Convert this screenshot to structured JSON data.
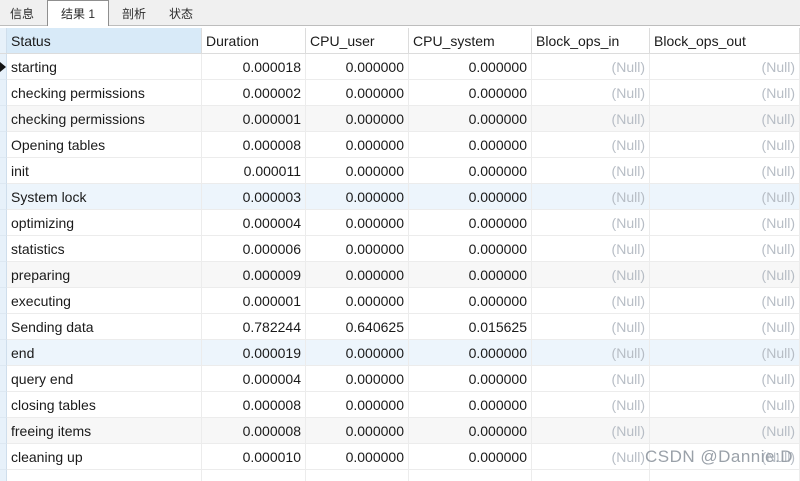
{
  "tab_bar": {
    "tabs": [
      {
        "name": "info",
        "label": "信息",
        "active": false
      },
      {
        "name": "result-1",
        "label": "结果 1",
        "active": true
      },
      {
        "name": "profiling",
        "label": "剖析",
        "active": false
      },
      {
        "name": "status",
        "label": "状态",
        "active": false
      }
    ]
  },
  "grid": {
    "columns": [
      {
        "key": "status",
        "label": "Status",
        "selected": true
      },
      {
        "key": "duration",
        "label": "Duration"
      },
      {
        "key": "cpu_user",
        "label": "CPU_user"
      },
      {
        "key": "cpu_system",
        "label": "CPU_system"
      },
      {
        "key": "block_ops_in",
        "label": "Block_ops_in"
      },
      {
        "key": "block_ops_out",
        "label": "Block_ops_out"
      }
    ],
    "null_text": "(Null)",
    "rows": [
      {
        "current": true,
        "tint": "none",
        "cells": {
          "status": "starting",
          "duration": "0.000018",
          "cpu_user": "0.000000",
          "cpu_system": "0.000000",
          "block_ops_in": null,
          "block_ops_out": null
        }
      },
      {
        "current": false,
        "tint": "none",
        "cells": {
          "status": "checking permissions",
          "duration": "0.000002",
          "cpu_user": "0.000000",
          "cpu_system": "0.000000",
          "block_ops_in": null,
          "block_ops_out": null
        }
      },
      {
        "current": false,
        "tint": "gray",
        "cells": {
          "status": "checking permissions",
          "duration": "0.000001",
          "cpu_user": "0.000000",
          "cpu_system": "0.000000",
          "block_ops_in": null,
          "block_ops_out": null
        }
      },
      {
        "current": false,
        "tint": "none",
        "cells": {
          "status": "Opening tables",
          "duration": "0.000008",
          "cpu_user": "0.000000",
          "cpu_system": "0.000000",
          "block_ops_in": null,
          "block_ops_out": null
        }
      },
      {
        "current": false,
        "tint": "none",
        "cells": {
          "status": "init",
          "duration": "0.000011",
          "cpu_user": "0.000000",
          "cpu_system": "0.000000",
          "block_ops_in": null,
          "block_ops_out": null
        }
      },
      {
        "current": false,
        "tint": "blue",
        "cells": {
          "status": "System lock",
          "duration": "0.000003",
          "cpu_user": "0.000000",
          "cpu_system": "0.000000",
          "block_ops_in": null,
          "block_ops_out": null
        }
      },
      {
        "current": false,
        "tint": "none",
        "cells": {
          "status": "optimizing",
          "duration": "0.000004",
          "cpu_user": "0.000000",
          "cpu_system": "0.000000",
          "block_ops_in": null,
          "block_ops_out": null
        }
      },
      {
        "current": false,
        "tint": "none",
        "cells": {
          "status": "statistics",
          "duration": "0.000006",
          "cpu_user": "0.000000",
          "cpu_system": "0.000000",
          "block_ops_in": null,
          "block_ops_out": null
        }
      },
      {
        "current": false,
        "tint": "gray",
        "cells": {
          "status": "preparing",
          "duration": "0.000009",
          "cpu_user": "0.000000",
          "cpu_system": "0.000000",
          "block_ops_in": null,
          "block_ops_out": null
        }
      },
      {
        "current": false,
        "tint": "none",
        "cells": {
          "status": "executing",
          "duration": "0.000001",
          "cpu_user": "0.000000",
          "cpu_system": "0.000000",
          "block_ops_in": null,
          "block_ops_out": null
        }
      },
      {
        "current": false,
        "tint": "none",
        "cells": {
          "status": "Sending data",
          "duration": "0.782244",
          "cpu_user": "0.640625",
          "cpu_system": "0.015625",
          "block_ops_in": null,
          "block_ops_out": null
        }
      },
      {
        "current": false,
        "tint": "blue",
        "cells": {
          "status": "end",
          "duration": "0.000019",
          "cpu_user": "0.000000",
          "cpu_system": "0.000000",
          "block_ops_in": null,
          "block_ops_out": null
        }
      },
      {
        "current": false,
        "tint": "none",
        "cells": {
          "status": "query end",
          "duration": "0.000004",
          "cpu_user": "0.000000",
          "cpu_system": "0.000000",
          "block_ops_in": null,
          "block_ops_out": null
        }
      },
      {
        "current": false,
        "tint": "none",
        "cells": {
          "status": "closing tables",
          "duration": "0.000008",
          "cpu_user": "0.000000",
          "cpu_system": "0.000000",
          "block_ops_in": null,
          "block_ops_out": null
        }
      },
      {
        "current": false,
        "tint": "gray",
        "cells": {
          "status": "freeing items",
          "duration": "0.000008",
          "cpu_user": "0.000000",
          "cpu_system": "0.000000",
          "block_ops_in": null,
          "block_ops_out": null
        }
      },
      {
        "current": false,
        "tint": "none",
        "cells": {
          "status": "cleaning up",
          "duration": "0.000010",
          "cpu_user": "0.000000",
          "cpu_system": "0.000000",
          "block_ops_in": null,
          "block_ops_out": null
        }
      }
    ]
  },
  "watermark": {
    "text": "CSDN @Dannie:D"
  },
  "colors": {
    "header_selected_bg": "#d8eaf8",
    "gutter_bg": "#e7f1fa",
    "gutter_border": "#cfdeec",
    "grid_line": "#ececec",
    "header_line": "#dcdcdc",
    "row_tint_blue": "#edf5fc",
    "row_tint_gray": "#f7f7f7",
    "null_color": "#b7bdc5",
    "text_color": "#1a1a1a",
    "tabbar_bg": "#f0f0f0",
    "tab_border": "#8f8f8f",
    "tabbar_line": "#bdbdbd",
    "watermark_color": "#9aa1a9"
  }
}
